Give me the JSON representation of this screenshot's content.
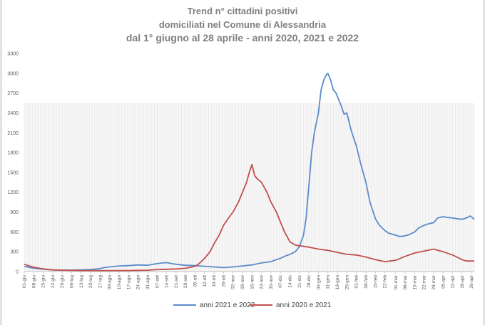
{
  "chart_data": {
    "type": "line",
    "title": [
      "Trend n° cittadini positivi",
      "domiciliati nel Comune di Alessandria",
      "dal 1° giugno al 28 aprile - anni 2020, 2021 e 2022"
    ],
    "xlabel": "",
    "ylabel": "",
    "ylim": [
      0,
      3300
    ],
    "yticks": [
      0,
      300,
      600,
      900,
      1200,
      1500,
      1800,
      2100,
      2400,
      2700,
      3000,
      3300
    ],
    "grid": false,
    "legend_position": "bottom",
    "x_ticks": [
      "01-giu",
      "08-giu",
      "15-giu",
      "22-giu",
      "29-giu",
      "06-lug",
      "13-lug",
      "20-lug",
      "27-lug",
      "03-ago",
      "10-ago",
      "17-ago",
      "24-ago",
      "31-ago",
      "07-set",
      "14-set",
      "21-set",
      "28-set",
      "05-ott",
      "12-ott",
      "19-ott",
      "26-ott",
      "02-nov",
      "09-nov",
      "16-nov",
      "23-nov",
      "30-nov",
      "07-dic",
      "14-dic",
      "21-dic",
      "28-dic",
      "04-gen",
      "11-gen",
      "18-gen",
      "25-gen",
      "01-feb",
      "08-feb",
      "15-feb",
      "22-feb",
      "01-mar",
      "08-mar",
      "15-mar",
      "22-mar",
      "29-mar",
      "05-apr",
      "12-apr",
      "19-apr",
      "26-apr"
    ],
    "x_last": "28-apr",
    "series": [
      {
        "name": "anni 2021 e 2022",
        "color": "#5b8bc9",
        "points": [
          [
            "01-giu",
            80
          ],
          [
            "04-giu",
            65
          ],
          [
            "08-giu",
            50
          ],
          [
            "15-giu",
            35
          ],
          [
            "22-giu",
            25
          ],
          [
            "29-giu",
            22
          ],
          [
            "06-lug",
            22
          ],
          [
            "13-lug",
            25
          ],
          [
            "20-lug",
            30
          ],
          [
            "27-lug",
            45
          ],
          [
            "30-lug",
            60
          ],
          [
            "03-ago",
            70
          ],
          [
            "10-ago",
            85
          ],
          [
            "17-ago",
            90
          ],
          [
            "24-ago",
            100
          ],
          [
            "31-ago",
            95
          ],
          [
            "04-set",
            110
          ],
          [
            "07-set",
            120
          ],
          [
            "11-set",
            130
          ],
          [
            "14-set",
            135
          ],
          [
            "18-set",
            120
          ],
          [
            "21-set",
            110
          ],
          [
            "25-set",
            100
          ],
          [
            "28-set",
            95
          ],
          [
            "05-ott",
            90
          ],
          [
            "12-ott",
            80
          ],
          [
            "19-ott",
            70
          ],
          [
            "26-ott",
            60
          ],
          [
            "02-nov",
            70
          ],
          [
            "09-nov",
            85
          ],
          [
            "16-nov",
            100
          ],
          [
            "23-nov",
            130
          ],
          [
            "30-nov",
            150
          ],
          [
            "04-dic",
            180
          ],
          [
            "07-dic",
            200
          ],
          [
            "10-dic",
            230
          ],
          [
            "14-dic",
            260
          ],
          [
            "18-dic",
            300
          ],
          [
            "21-dic",
            380
          ],
          [
            "24-dic",
            550
          ],
          [
            "26-dic",
            820
          ],
          [
            "28-dic",
            1300
          ],
          [
            "30-dic",
            1800
          ],
          [
            "01-gen",
            2100
          ],
          [
            "04-gen",
            2400
          ],
          [
            "06-gen",
            2750
          ],
          [
            "08-gen",
            2900
          ],
          [
            "10-gen",
            2980
          ],
          [
            "11-gen",
            3000
          ],
          [
            "13-gen",
            2900
          ],
          [
            "15-gen",
            2750
          ],
          [
            "17-gen",
            2700
          ],
          [
            "19-gen",
            2600
          ],
          [
            "21-gen",
            2500
          ],
          [
            "23-gen",
            2380
          ],
          [
            "25-gen",
            2400
          ],
          [
            "28-gen",
            2150
          ],
          [
            "01-feb",
            1900
          ],
          [
            "04-feb",
            1650
          ],
          [
            "08-feb",
            1350
          ],
          [
            "11-feb",
            1050
          ],
          [
            "15-feb",
            800
          ],
          [
            "18-feb",
            700
          ],
          [
            "22-feb",
            620
          ],
          [
            "25-feb",
            580
          ],
          [
            "01-mar",
            550
          ],
          [
            "04-mar",
            530
          ],
          [
            "08-mar",
            540
          ],
          [
            "11-mar",
            560
          ],
          [
            "15-mar",
            600
          ],
          [
            "18-mar",
            660
          ],
          [
            "22-mar",
            700
          ],
          [
            "25-mar",
            720
          ],
          [
            "29-mar",
            740
          ],
          [
            "01-apr",
            810
          ],
          [
            "05-apr",
            830
          ],
          [
            "08-apr",
            820
          ],
          [
            "12-apr",
            810
          ],
          [
            "15-apr",
            800
          ],
          [
            "19-apr",
            790
          ],
          [
            "22-apr",
            810
          ],
          [
            "25-apr",
            840
          ],
          [
            "28-apr",
            790
          ]
        ]
      },
      {
        "name": "anni 2020 e 2021",
        "color": "#c0504d",
        "points": [
          [
            "01-giu",
            110
          ],
          [
            "04-giu",
            90
          ],
          [
            "08-giu",
            65
          ],
          [
            "15-giu",
            40
          ],
          [
            "22-giu",
            25
          ],
          [
            "29-giu",
            20
          ],
          [
            "06-lug",
            18
          ],
          [
            "13-lug",
            15
          ],
          [
            "20-lug",
            15
          ],
          [
            "27-lug",
            15
          ],
          [
            "03-ago",
            15
          ],
          [
            "10-ago",
            15
          ],
          [
            "17-ago",
            15
          ],
          [
            "24-ago",
            18
          ],
          [
            "31-ago",
            20
          ],
          [
            "07-set",
            30
          ],
          [
            "14-set",
            35
          ],
          [
            "21-set",
            40
          ],
          [
            "28-set",
            50
          ],
          [
            "05-ott",
            80
          ],
          [
            "08-ott",
            120
          ],
          [
            "12-ott",
            200
          ],
          [
            "16-ott",
            300
          ],
          [
            "19-ott",
            420
          ],
          [
            "23-ott",
            560
          ],
          [
            "26-ott",
            700
          ],
          [
            "30-ott",
            820
          ],
          [
            "02-nov",
            900
          ],
          [
            "06-nov",
            1050
          ],
          [
            "09-nov",
            1200
          ],
          [
            "12-nov",
            1350
          ],
          [
            "14-nov",
            1500
          ],
          [
            "16-nov",
            1620
          ],
          [
            "18-nov",
            1450
          ],
          [
            "20-nov",
            1400
          ],
          [
            "23-nov",
            1350
          ],
          [
            "27-nov",
            1200
          ],
          [
            "30-nov",
            1050
          ],
          [
            "04-dic",
            900
          ],
          [
            "07-dic",
            750
          ],
          [
            "10-dic",
            600
          ],
          [
            "14-dic",
            450
          ],
          [
            "18-dic",
            400
          ],
          [
            "21-dic",
            390
          ],
          [
            "28-dic",
            370
          ],
          [
            "04-gen",
            340
          ],
          [
            "11-gen",
            320
          ],
          [
            "18-gen",
            290
          ],
          [
            "25-gen",
            260
          ],
          [
            "01-feb",
            250
          ],
          [
            "08-feb",
            220
          ],
          [
            "15-feb",
            180
          ],
          [
            "22-feb",
            150
          ],
          [
            "01-mar",
            170
          ],
          [
            "08-mar",
            230
          ],
          [
            "15-mar",
            280
          ],
          [
            "22-mar",
            310
          ],
          [
            "29-mar",
            340
          ],
          [
            "05-apr",
            300
          ],
          [
            "12-apr",
            250
          ],
          [
            "19-apr",
            180
          ],
          [
            "22-apr",
            160
          ],
          [
            "28-apr",
            160
          ]
        ]
      }
    ]
  }
}
